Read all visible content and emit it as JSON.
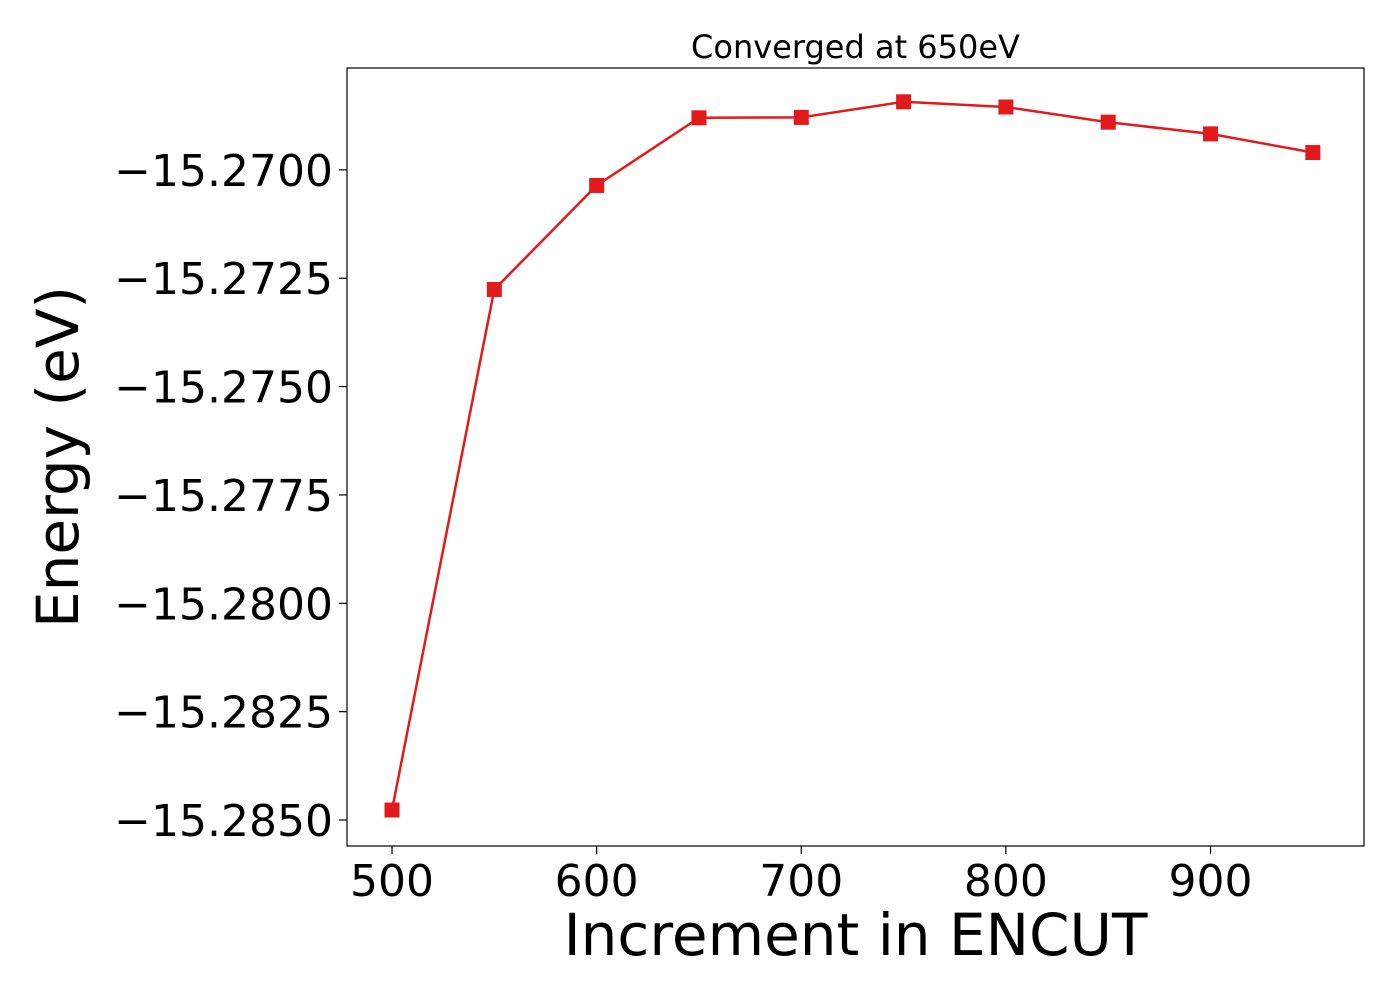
{
  "chart_data": {
    "type": "line",
    "title": "Converged at 650eV",
    "xlabel": "Increment in ENCUT",
    "ylabel": "Energy (eV)",
    "xlim": [
      478,
      975
    ],
    "ylim": [
      -15.2856,
      -15.26765
    ],
    "xticks": [
      500,
      600,
      700,
      800,
      900
    ],
    "xtick_labels": [
      "500",
      "600",
      "700",
      "800",
      "900"
    ],
    "yticks": [
      -15.27,
      -15.2725,
      -15.275,
      -15.2775,
      -15.28,
      -15.2825,
      -15.285
    ],
    "ytick_labels": [
      "−15.2700",
      "−15.2725",
      "−15.2750",
      "−15.2775",
      "−15.2800",
      "−15.2825",
      "−15.2850"
    ],
    "grid": false,
    "series": [
      {
        "color": "#e31a1c",
        "marker": "square",
        "x": [
          500,
          550,
          600,
          650,
          700,
          750,
          800,
          850,
          900,
          950
        ],
        "y": [
          -15.28477,
          -15.27276,
          -15.27036,
          -15.2688,
          -15.26879,
          -15.26843,
          -15.26855,
          -15.2689,
          -15.26917,
          -15.2696
        ]
      }
    ]
  }
}
